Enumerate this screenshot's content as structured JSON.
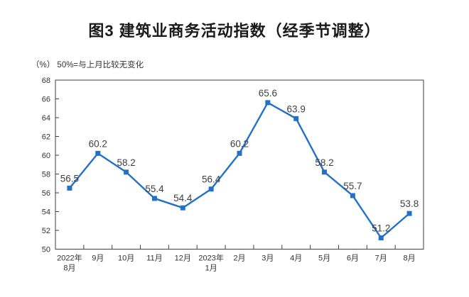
{
  "page": {
    "title": "图3 建筑业商务活动指数（经季节调整）",
    "unit_note": "（%） 50%=与上月比较无变化"
  },
  "chart_data": {
    "type": "line",
    "title": "图3 建筑业商务活动指数（经季节调整）",
    "subtitle": "（%） 50%=与上月比较无变化",
    "categories": [
      "2022年\n8月",
      "9月",
      "10月",
      "11月",
      "12月",
      "2023年\n1月",
      "2月",
      "3月",
      "4月",
      "5月",
      "6月",
      "7月",
      "8月"
    ],
    "series": [
      {
        "name": "建筑业商务活动指数",
        "values": [
          56.5,
          60.2,
          58.2,
          55.4,
          54.4,
          56.4,
          60.2,
          65.6,
          63.9,
          58.2,
          55.7,
          51.2,
          53.8
        ]
      }
    ],
    "ylim": [
      50,
      68
    ],
    "ytick_step": 2,
    "grid": false,
    "legend": "none",
    "marker": "square",
    "line_color": "#2271C7",
    "axis_color": "#3f3f3f",
    "label_color": "#404040",
    "tick_label_color": "#333333"
  }
}
